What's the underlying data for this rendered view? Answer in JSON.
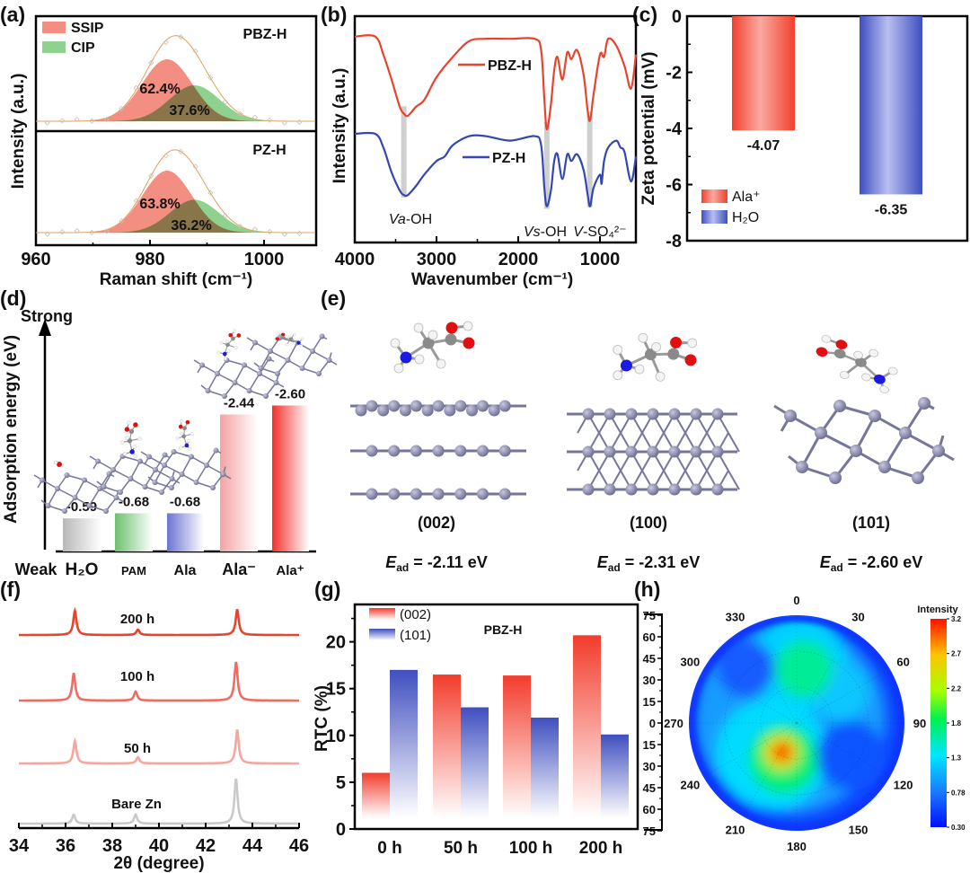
{
  "panel_labels": [
    "(a)",
    "(b)",
    "(c)",
    "(d)",
    "(e)",
    "(f)",
    "(g)",
    "(h)"
  ],
  "chart_data": [
    {
      "panel": "a",
      "type": "area",
      "xlabel": "Raman shift (cm⁻¹)",
      "ylabel": "Intensity (a.u.)",
      "xlim": [
        960,
        1009
      ],
      "xticks": [
        960,
        980,
        1000
      ],
      "xtick_labels": [
        "960",
        "980",
        "1000"
      ],
      "legend": [
        {
          "name": "SSIP",
          "color": "#f28f82"
        },
        {
          "name": "CIP",
          "color": "#8fd18f"
        }
      ],
      "fit_color": "#e0a060",
      "subplots": [
        {
          "name": "PBZ-H",
          "components": [
            {
              "name": "SSIP",
              "center": 983.0,
              "width": 4.4,
              "amplitude": 1.0,
              "percent": "62.4%"
            },
            {
              "name": "CIP",
              "center": 987.8,
              "width": 4.4,
              "amplitude": 0.58,
              "percent": "37.6%"
            }
          ]
        },
        {
          "name": "PZ-H",
          "components": [
            {
              "name": "SSIP",
              "center": 983.0,
              "width": 4.3,
              "amplitude": 1.0,
              "percent": "63.8%"
            },
            {
              "name": "CIP",
              "center": 987.8,
              "width": 4.3,
              "amplitude": 0.53,
              "percent": "36.2%"
            }
          ]
        }
      ]
    },
    {
      "panel": "b",
      "type": "line",
      "xlabel": "Wavenumber (cm⁻¹)",
      "ylabel": "Intensity (a.u.)",
      "xlim": [
        4000,
        560
      ],
      "xticks": [
        4000,
        3000,
        2000,
        1000
      ],
      "xtick_labels": [
        "4000",
        "3000",
        "2000",
        "1000"
      ],
      "series": [
        {
          "name": "PBZ-H",
          "color": "#e8432e",
          "x": [
            4000,
            3750,
            3650,
            3550,
            3450,
            3400,
            3350,
            3250,
            3150,
            3000,
            2800,
            2600,
            2400,
            2100,
            1800,
            1720,
            1680,
            1650,
            1600,
            1560,
            1520,
            1460,
            1400,
            1350,
            1280,
            1200,
            1150,
            1120,
            1080,
            1000,
            950,
            900,
            800,
            700,
            620,
            560
          ],
          "y": [
            91,
            91,
            83,
            72,
            60,
            57,
            56,
            60,
            63,
            73,
            82,
            89,
            90,
            90,
            90,
            85,
            63,
            50,
            61,
            76,
            82,
            72,
            84,
            81,
            85,
            74,
            58,
            54,
            65,
            83,
            82,
            90,
            87,
            78,
            68,
            83
          ]
        },
        {
          "name": "PZ-H",
          "color": "#3447b0",
          "x": [
            4000,
            3750,
            3650,
            3550,
            3450,
            3400,
            3350,
            3250,
            3150,
            3000,
            2900,
            2800,
            2600,
            2400,
            2100,
            1800,
            1720,
            1680,
            1650,
            1600,
            1560,
            1520,
            1460,
            1400,
            1350,
            1280,
            1200,
            1150,
            1120,
            1080,
            1000,
            980,
            950,
            900,
            800,
            750,
            700,
            620,
            560
          ],
          "y": [
            48,
            48,
            42,
            31,
            23,
            21,
            21,
            25,
            30,
            36,
            38,
            43,
            47,
            47,
            45,
            47,
            43,
            24,
            16,
            23,
            36,
            39,
            28,
            39,
            36,
            39,
            32,
            21,
            16,
            24,
            30,
            26,
            36,
            42,
            45,
            42,
            40,
            27,
            38
          ]
        }
      ],
      "annotations": [
        {
          "x": 3400,
          "italic": "Va",
          "text": "-OH"
        },
        {
          "x": 1650,
          "italic": "Vs",
          "text": "-OH"
        },
        {
          "x": 1125,
          "italic": "V",
          "text": "-SO₄²⁻"
        }
      ]
    },
    {
      "panel": "c",
      "type": "bar",
      "ylabel": "Zeta potential (mV)",
      "ylim": [
        -8,
        0
      ],
      "yticks": [
        0,
        -2,
        -4,
        -6,
        -8
      ],
      "ytick_labels": [
        "0",
        "-2",
        "-4",
        "-6",
        "-8"
      ],
      "categories": [
        "Ala⁺",
        "H₂O"
      ],
      "values": [
        -4.07,
        -6.35
      ],
      "value_labels": [
        "-4.07",
        "-6.35"
      ],
      "colors": [
        "#f2402e",
        "#3f4fbf"
      ],
      "legend": "bottom-left"
    },
    {
      "panel": "d",
      "type": "bar",
      "ylabel": "Adsorption energy (eV)",
      "axis_top_label": "Strong",
      "axis_bottom_label": "Weak",
      "categories": [
        "H₂O",
        "PAM",
        "Ala",
        "Ala⁻",
        "Ala⁺"
      ],
      "values": [
        -0.59,
        -0.68,
        -0.68,
        -2.44,
        -2.6
      ],
      "value_labels": [
        "-0.59",
        "-0.68",
        "-0.68",
        "-2.44",
        "-2.60"
      ],
      "colors": [
        "#b8b8b8",
        "#6cc06c",
        "#6a74cf",
        "#f3a3a3",
        "#f2302a"
      ]
    },
    {
      "panel": "f",
      "type": "line",
      "xlabel": "2θ (degree)",
      "xlim": [
        34,
        46
      ],
      "xticks": [
        34,
        36,
        38,
        40,
        42,
        44,
        46
      ],
      "xtick_labels": [
        "34",
        "36",
        "38",
        "40",
        "42",
        "44",
        "46"
      ],
      "series": [
        {
          "name": "200 h",
          "color": "#e8432e",
          "peaks": [
            [
              36.4,
              27
            ],
            [
              39.1,
              6
            ],
            [
              43.35,
              28
            ]
          ]
        },
        {
          "name": "100 h",
          "color": "#ec6d62",
          "peaks": [
            [
              36.35,
              30
            ],
            [
              39.0,
              10
            ],
            [
              43.3,
              43
            ]
          ]
        },
        {
          "name": "50 h",
          "color": "#f3a7a0",
          "peaks": [
            [
              36.4,
              25
            ],
            [
              39.1,
              7
            ],
            [
              43.35,
              37
            ]
          ]
        },
        {
          "name": "Bare Zn",
          "color": "#c9c9c9",
          "peaks": [
            [
              36.35,
              10
            ],
            [
              39.0,
              10
            ],
            [
              43.3,
              50
            ]
          ]
        }
      ]
    },
    {
      "panel": "g",
      "type": "bar",
      "ylabel": "RTC (%)",
      "ylim": [
        0,
        24
      ],
      "yticks": [
        0,
        5,
        10,
        15,
        20
      ],
      "ytick_labels": [
        "0",
        "5",
        "10",
        "15",
        "20"
      ],
      "categories": [
        "0 h",
        "50 h",
        "100 h",
        "200 h"
      ],
      "series": [
        {
          "name": "(002)",
          "color": "#f23c2c",
          "values": [
            6.0,
            16.5,
            16.4,
            20.7
          ]
        },
        {
          "name": "(101)",
          "color": "#3f4fbf",
          "values": [
            17.0,
            13.0,
            11.9,
            10.1
          ]
        }
      ],
      "annotation": "PBZ-H",
      "legend": "top-left"
    },
    {
      "panel": "h",
      "type": "heatmap",
      "projection": "polar",
      "angle_ticks": [
        "0",
        "30",
        "60",
        "90",
        "120",
        "150",
        "180",
        "210",
        "240",
        "270",
        "300",
        "330"
      ],
      "radial_max": 75,
      "radial_tick_labels": [
        "75",
        "60",
        "45",
        "30",
        "15",
        "0",
        "15",
        "30",
        "45",
        "60",
        "75"
      ],
      "colorbar": {
        "title": "Intensity",
        "range": [
          0.3,
          3.2
        ],
        "tick_values": [
          3.2,
          2.7,
          2.2,
          1.8,
          1.3,
          0.78,
          0.3
        ],
        "tick_labels": [
          "3.2",
          "2.7",
          "2.2",
          "1.8",
          "1.3",
          "0.78",
          "0.30"
        ],
        "stops": [
          [
            0.3,
            "#0010ff"
          ],
          [
            0.78,
            "#1a78ff"
          ],
          [
            1.3,
            "#00e6ff"
          ],
          [
            1.8,
            "#00f050"
          ],
          [
            2.2,
            "#a8ff00"
          ],
          [
            2.7,
            "#ffc400"
          ],
          [
            3.2,
            "#ff1000"
          ]
        ]
      },
      "background_intensity": 0.55,
      "regions": [
        {
          "theta": 305,
          "r": 5,
          "size": 66,
          "intensity": 0.95
        },
        {
          "theta": 3,
          "r": 41,
          "size": 34,
          "intensity": 1.2
        },
        {
          "theta": 218,
          "r": 28,
          "size": 39,
          "intensity": 1.25
        },
        {
          "theta": 54,
          "r": 37,
          "size": 20,
          "intensity": 1.15
        },
        {
          "theta": 121,
          "r": 44,
          "size": 24,
          "intensity": 0.62
        },
        {
          "theta": 317,
          "r": 52,
          "size": 20,
          "intensity": 0.65
        },
        {
          "theta": 8,
          "r": 38,
          "size": 20,
          "intensity": 1.6
        },
        {
          "theta": 200,
          "r": 27,
          "size": 24,
          "intensity": 1.7
        },
        {
          "theta": 207,
          "r": 23,
          "size": 13,
          "intensity": 2.4
        },
        {
          "theta": 207,
          "r": 23,
          "size": 8,
          "intensity": 2.8
        },
        {
          "theta": 205,
          "r": 22,
          "size": 5.5,
          "intensity": 3.2
        }
      ]
    }
  ],
  "panel_e": {
    "structures": [
      {
        "facet": "(002)",
        "symbol": "E",
        "subscript": "ad",
        "value": " = -2.11 eV"
      },
      {
        "facet": "(100)",
        "symbol": "E",
        "subscript": "ad",
        "value": " = -2.31 eV"
      },
      {
        "facet": "(101)",
        "symbol": "E",
        "subscript": "ad",
        "value": " = -2.60 eV"
      }
    ],
    "atom_colors": {
      "Zn": "#8585a8",
      "C": "#8a8a8a",
      "H": "#f4f4f4",
      "O": "#e01010",
      "N": "#1a1ae0"
    }
  }
}
